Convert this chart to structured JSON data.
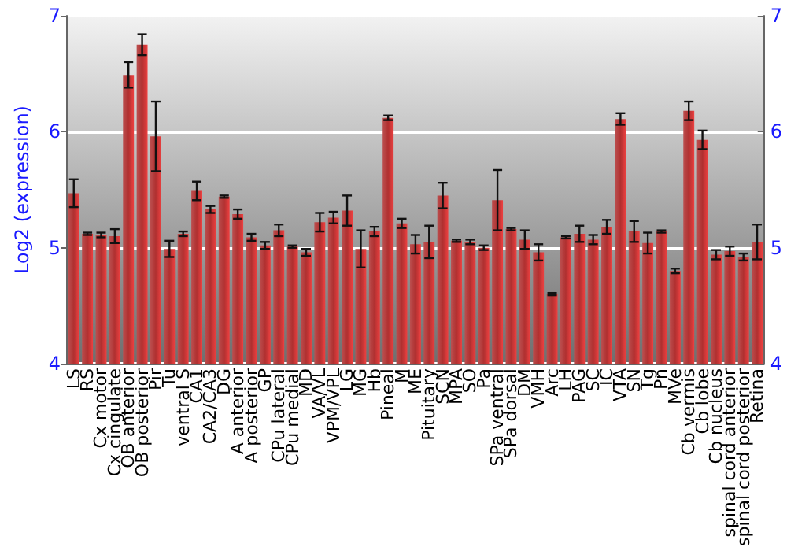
{
  "chart_data": {
    "type": "bar",
    "ylabel": "Log2 (expression)",
    "categories": [
      "LS",
      "RS",
      "Cx motor",
      "Cx cingulate",
      "OB anterior",
      "OB posterior",
      "Pir",
      "Tu",
      "ventral S",
      "CA1",
      "CA2/CA3",
      "DG",
      "A anterior",
      "A posterior",
      "GP",
      "CPu lateral",
      "CPu medial",
      "MD",
      "VA/VL",
      "VPM/VPL",
      "LG",
      "MG",
      "Hb",
      "Pineal",
      "M",
      "ME",
      "Pituitary",
      "SCN",
      "MPA",
      "SO",
      "Pa",
      "SPa ventral",
      "SPa dorsal",
      "DM",
      "VMH",
      "Arc",
      "LH",
      "PAG",
      "SC",
      "IC",
      "VTA",
      "SN",
      "Tg",
      "Pn",
      "MVe",
      "Cb vermis",
      "Cb lobe",
      "Cb nucleus",
      "spinal cord anterior",
      "spinal cord posterior",
      "Retina"
    ],
    "values": [
      5.47,
      5.12,
      5.11,
      5.1,
      6.49,
      6.75,
      5.96,
      4.99,
      5.12,
      5.49,
      5.33,
      5.44,
      5.29,
      5.09,
      5.02,
      5.15,
      5.01,
      4.96,
      5.22,
      5.26,
      5.32,
      4.99,
      5.14,
      6.12,
      5.21,
      5.03,
      5.05,
      5.45,
      5.06,
      5.05,
      5.0,
      5.41,
      5.16,
      5.07,
      4.96,
      4.6,
      5.09,
      5.12,
      5.07,
      5.18,
      6.11,
      5.14,
      5.04,
      5.14,
      4.8,
      6.18,
      5.93,
      4.94,
      4.97,
      4.92,
      5.05
    ],
    "errors": [
      0.12,
      0.01,
      0.02,
      0.06,
      0.11,
      0.09,
      0.3,
      0.07,
      0.02,
      0.08,
      0.03,
      0.01,
      0.04,
      0.03,
      0.03,
      0.05,
      0.01,
      0.03,
      0.08,
      0.05,
      0.13,
      0.16,
      0.04,
      0.02,
      0.04,
      0.08,
      0.14,
      0.11,
      0.01,
      0.02,
      0.02,
      0.26,
      0.01,
      0.08,
      0.07,
      0.01,
      0.01,
      0.07,
      0.04,
      0.06,
      0.05,
      0.09,
      0.09,
      0.01,
      0.02,
      0.08,
      0.08,
      0.04,
      0.04,
      0.03,
      0.15
    ],
    "color": "#b03030",
    "ylim": [
      4,
      7
    ],
    "yticks": [
      4,
      5,
      6,
      7
    ],
    "y2lim": [
      4,
      7
    ],
    "y2ticks": [
      4,
      5,
      6,
      7
    ],
    "grid": "y"
  }
}
